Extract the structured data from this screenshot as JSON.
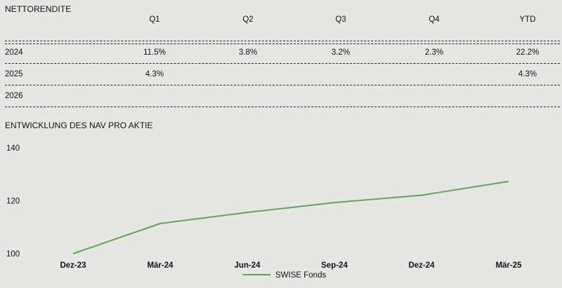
{
  "returns": {
    "title": "NETTORENDITE",
    "headers": [
      "Q1",
      "Q2",
      "Q3",
      "Q4",
      "YTD"
    ],
    "rows": [
      {
        "year": "2024",
        "values": [
          "11.5%",
          "3.8%",
          "3.2%",
          "2.3%",
          "22.2%"
        ]
      },
      {
        "year": "2025",
        "values": [
          "4.3%",
          "",
          "",
          "",
          "4.3%"
        ]
      },
      {
        "year": "2026",
        "values": [
          "",
          "",
          "",
          "",
          ""
        ]
      }
    ]
  },
  "nav": {
    "title": "ENTWICKLUNG DES NAV PRO AKTIE"
  },
  "chart_data": {
    "type": "line",
    "title": "ENTWICKLUNG DES NAV PRO AKTIE",
    "categories": [
      "Dez-23",
      "Mär-24",
      "Jun-24",
      "Sep-24",
      "Dez-24",
      "Mär-25"
    ],
    "x_points": [
      "Dez-23",
      "Mär-24",
      "Jun-24",
      "Sep-24",
      "Dez-24",
      "Mär-25"
    ],
    "series": [
      {
        "name": "SWISE Fonds",
        "values": [
          100.0,
          111.4,
          115.6,
          119.3,
          122.1,
          127.3
        ],
        "color": "#5aa84f"
      }
    ],
    "yticks": [
      100,
      120,
      140
    ],
    "ylim": [
      100,
      140
    ],
    "grid": false,
    "legend": "bottom-center"
  }
}
